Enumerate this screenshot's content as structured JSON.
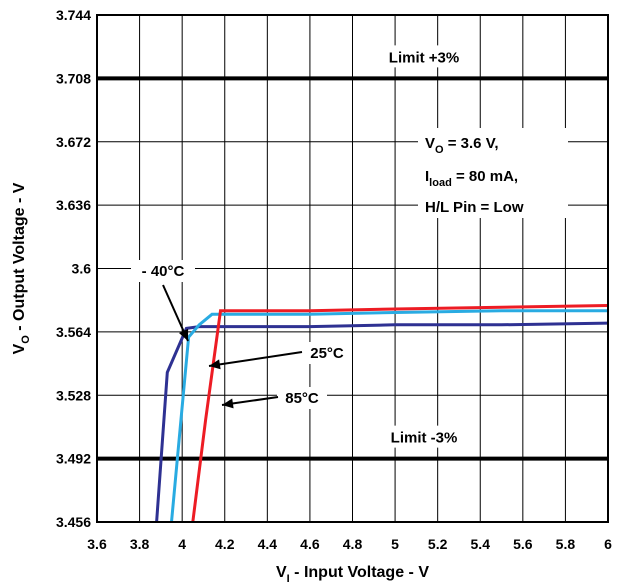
{
  "chart_data": {
    "type": "line",
    "xlabel": {
      "main": "V",
      "sub": "I",
      "rest": " - Input Voltage - V"
    },
    "ylabel": {
      "main": "V",
      "sub": "O",
      "rest": " - Output Voltage - V"
    },
    "xlim": [
      3.6,
      6
    ],
    "ylim": [
      3.456,
      3.744
    ],
    "x_ticks": [
      "3.6",
      "3.8",
      "4",
      "4.2",
      "4.4",
      "4.6",
      "4.8",
      "5",
      "5.2",
      "5.4",
      "5.6",
      "5.8",
      "6"
    ],
    "y_ticks": [
      "3.456",
      "3.492",
      "3.528",
      "3.564",
      "3.6",
      "3.636",
      "3.672",
      "3.708",
      "3.744"
    ],
    "grid": true,
    "series": [
      {
        "name": "- 40°C",
        "color": "#2e3192",
        "x": [
          3.88,
          3.93,
          4.02,
          4.08,
          4.2,
          4.6,
          5.0,
          5.5,
          6.0
        ],
        "y": [
          3.456,
          3.541,
          3.566,
          3.567,
          3.567,
          3.567,
          3.568,
          3.568,
          3.569
        ]
      },
      {
        "name": "25°C",
        "color": "#29abe2",
        "x": [
          3.95,
          4.03,
          4.08,
          4.14,
          4.6,
          5.0,
          5.5,
          6.0
        ],
        "y": [
          3.456,
          3.561,
          3.568,
          3.574,
          3.574,
          3.575,
          3.576,
          3.576
        ]
      },
      {
        "name": "85°C",
        "color": "#ed1c24",
        "x": [
          4.05,
          4.11,
          4.18,
          4.6,
          5.0,
          5.5,
          6.0
        ],
        "y": [
          3.456,
          3.514,
          3.576,
          3.576,
          3.577,
          3.578,
          3.579
        ]
      }
    ],
    "limit_lines": [
      {
        "label": "Limit +3%",
        "y": 3.708
      },
      {
        "label": "Limit -3%",
        "y": 3.492
      }
    ],
    "conditions": [
      {
        "main": "V",
        "sub": "O",
        "rest": " = 3.6 V,"
      },
      {
        "main": "I",
        "sub": "load",
        "rest": " = 80 mA,"
      },
      {
        "main": "H/L Pin = Low",
        "sub": "",
        "rest": ""
      }
    ]
  }
}
